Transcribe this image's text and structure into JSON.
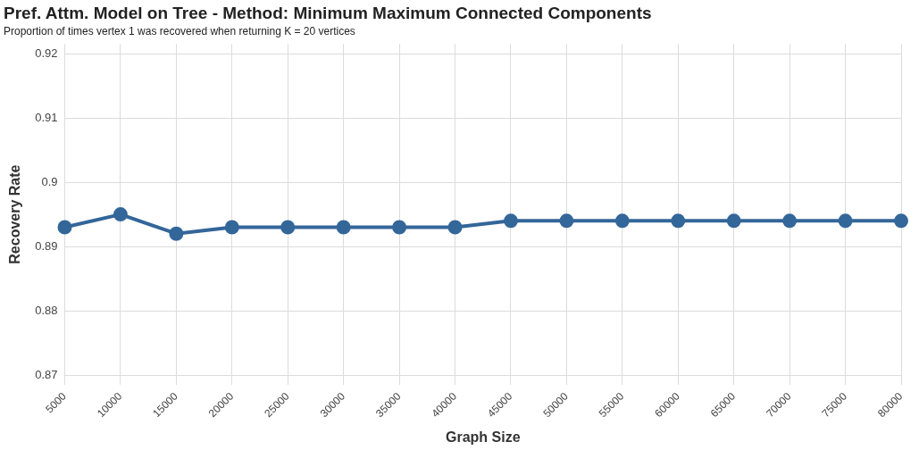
{
  "chart_data": {
    "type": "line",
    "title": "Pref. Attm. Model on Tree - Method: Minimum Maximum Connected Components",
    "subtitle": "Proportion of times vertex 1 was recovered when returning K = 20 vertices",
    "xlabel": "Graph Size",
    "ylabel": "Recovery Rate",
    "categories": [
      "5000",
      "10000",
      "15000",
      "20000",
      "25000",
      "30000",
      "35000",
      "40000",
      "45000",
      "50000",
      "55000",
      "60000",
      "65000",
      "70000",
      "75000",
      "80000"
    ],
    "series": [
      {
        "color": "#336699",
        "values": [
          0.893,
          0.895,
          0.892,
          0.893,
          0.893,
          0.893,
          0.893,
          0.893,
          0.894,
          0.894,
          0.894,
          0.894,
          0.894,
          0.894,
          0.894,
          0.894
        ]
      }
    ],
    "ylim": [
      0.8685,
      0.9215
    ],
    "yticks": [
      0.87,
      0.88,
      0.89,
      0.9,
      0.91,
      0.92
    ],
    "grid": true,
    "legend": false,
    "marker": "circle",
    "line_style": "solid"
  }
}
